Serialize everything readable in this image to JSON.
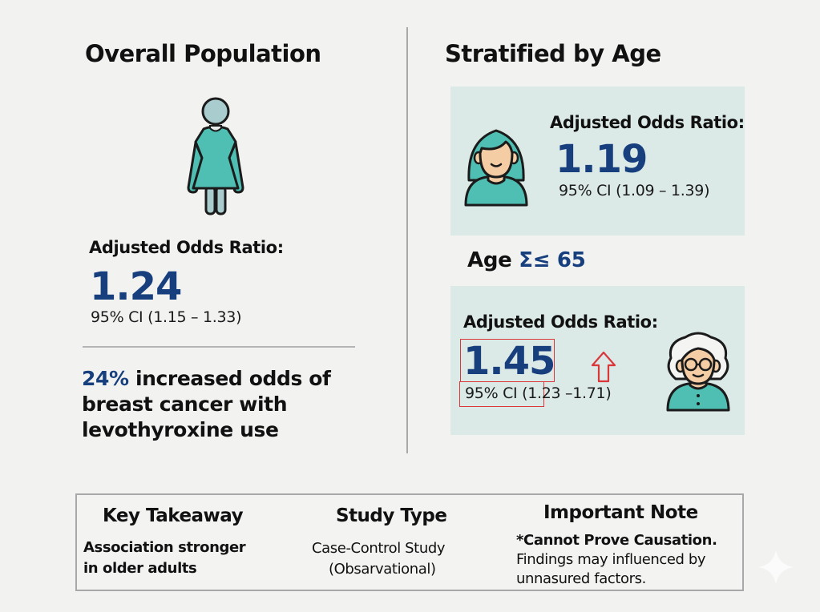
{
  "left_panel": {
    "title": "Overall Population",
    "icon": "woman-figure-icon",
    "aor_label": "Adjusted Odds Ratio:",
    "aor_value": "1.24",
    "ci": "95% CI (1.15 – 1.33)",
    "statement_highlight": "24%",
    "statement_rest": " increased odds of breast cancer with levothyroxine use"
  },
  "right_panel": {
    "title": "Stratified by Age",
    "younger": {
      "icon": "young-woman-avatar-icon",
      "aor_label": "Adjusted Odds Ratio:",
      "aor_value": "1.19",
      "ci": "95% CI (1.09 – 1.39)"
    },
    "age_label_prefix": "Age",
    "age_label_symbol": "Σ≤ 65",
    "older": {
      "icon": "older-woman-avatar-icon",
      "aor_label": "Adjusted Odds Ratio:",
      "aor_value": "1.45",
      "ci": "95% CI (1.23 –1.71)",
      "trend_icon": "up-arrow-icon"
    }
  },
  "footer": {
    "columns": [
      {
        "heading": "Key Takeaway",
        "line1": "Association stronger",
        "line2": "in older adults"
      },
      {
        "heading": "Study Type",
        "line1": "Case-Control Study",
        "line2": "(Obsarvational)"
      },
      {
        "heading": "Important Note",
        "line1": "*Cannot Prove Causation.",
        "line2": "Findings may influenced by",
        "line3": "unnasured factors."
      }
    ]
  },
  "colors": {
    "accent_blue": "#173f7e",
    "teal": "#4fbfb3",
    "card_bg": "#dbe9e7",
    "highlight_red": "#d9373a"
  },
  "decor": {
    "corner_icon": "sparkle-icon"
  }
}
